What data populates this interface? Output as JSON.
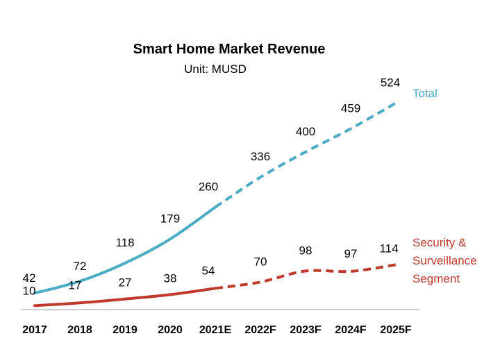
{
  "chart_data": {
    "type": "line",
    "title": "Smart Home Market Revenue",
    "subtitle": "Unit: MUSD",
    "categories": [
      "2017",
      "2018",
      "2019",
      "2020",
      "2021E",
      "2022F",
      "2023F",
      "2024F",
      "2025F"
    ],
    "actual_through": "2021E",
    "series": [
      {
        "name": "Total",
        "label_lines": [
          "Total"
        ],
        "color": "#4bacc6",
        "values": [
          42,
          72,
          118,
          179,
          260,
          336,
          400,
          459,
          524
        ],
        "labels": [
          "42",
          "72",
          "118",
          "179",
          "260",
          "336",
          "400",
          "459",
          "524"
        ]
      },
      {
        "name": "Security & Surveillance Segment",
        "label_lines": [
          "Security &",
          "Surveillance",
          "Segment"
        ],
        "color": "#c0392b",
        "values": [
          10,
          17,
          27,
          38,
          54,
          70,
          98,
          97,
          114
        ],
        "labels": [
          "10",
          "17",
          "27",
          "38",
          "54",
          "70",
          "98",
          "97",
          "114"
        ]
      }
    ],
    "xlabel": "",
    "ylabel": "",
    "ylim": [
      0,
      560
    ],
    "grid": false,
    "legend": "inline-right"
  }
}
